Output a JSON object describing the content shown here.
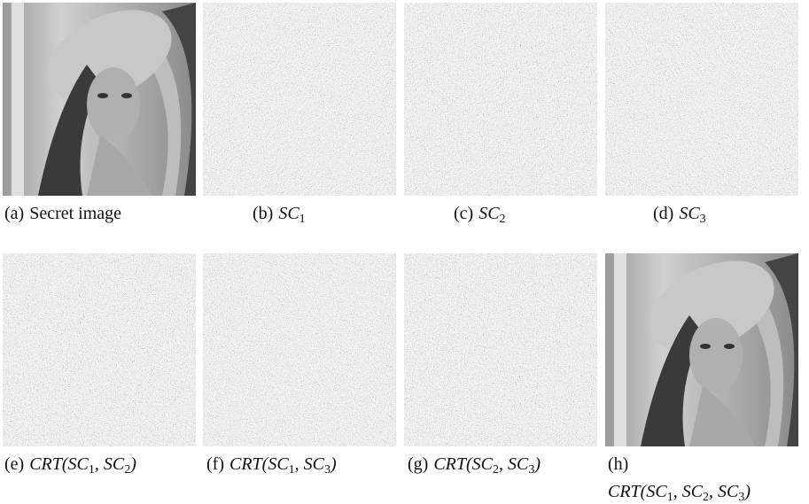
{
  "panels": [
    {
      "label": "(a)",
      "caption": [
        {
          "text": "Secret image"
        }
      ]
    },
    {
      "label": "(b)",
      "caption": [
        {
          "math": "SC"
        },
        {
          "sub": "1"
        }
      ]
    },
    {
      "label": "(c)",
      "caption": [
        {
          "math": "SC"
        },
        {
          "sub": "2"
        }
      ]
    },
    {
      "label": "(d)",
      "caption": [
        {
          "math": "SC"
        },
        {
          "sub": "3"
        }
      ]
    },
    {
      "label": "(e)",
      "caption": [
        {
          "math": "CRT(SC"
        },
        {
          "sub": "1"
        },
        {
          "math": ", SC"
        },
        {
          "sub": "2"
        },
        {
          "math": ")"
        }
      ]
    },
    {
      "label": "(f)",
      "caption": [
        {
          "math": "CRT(SC"
        },
        {
          "sub": "1"
        },
        {
          "math": ", SC"
        },
        {
          "sub": "3"
        },
        {
          "math": ")"
        }
      ]
    },
    {
      "label": "(g)",
      "caption": [
        {
          "math": "CRT(SC"
        },
        {
          "sub": "2"
        },
        {
          "math": ", SC"
        },
        {
          "sub": "3"
        },
        {
          "math": ")"
        }
      ]
    },
    {
      "label": "(h)",
      "caption": [
        {
          "math": "CRT(SC"
        },
        {
          "sub": "1"
        },
        {
          "math": ", SC"
        },
        {
          "sub": "2"
        },
        {
          "math": ", SC"
        },
        {
          "sub": "3"
        },
        {
          "math": ")"
        }
      ]
    }
  ]
}
